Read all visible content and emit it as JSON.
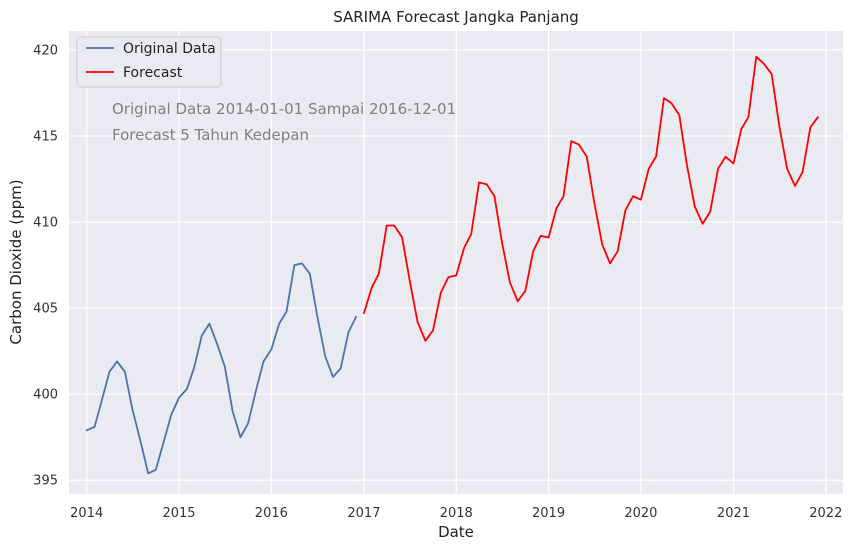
{
  "chart_data": {
    "type": "line",
    "title": "SARIMA Forecast Jangka Panjang",
    "xlabel": "Date",
    "ylabel": "Carbon Dioxide (ppm)",
    "xlim": [
      "2013-10-23",
      "2022-03-10"
    ],
    "ylim": [
      394.2,
      421.1
    ],
    "x_ticks": [
      "2014",
      "2015",
      "2016",
      "2017",
      "2018",
      "2019",
      "2020",
      "2021",
      "2022"
    ],
    "y_ticks": [
      395,
      400,
      405,
      410,
      415,
      420
    ],
    "grid": true,
    "legend": "top-left",
    "annotations": [
      "Original Data 2014-01-01 Sampai 2016-12-01",
      "Forecast 5 Tahun Kedepan"
    ],
    "series": [
      {
        "name": "Original Data",
        "color": "#4c72b0",
        "x": [
          "2014-01",
          "2014-02",
          "2014-03",
          "2014-04",
          "2014-05",
          "2014-06",
          "2014-07",
          "2014-08",
          "2014-09",
          "2014-10",
          "2014-11",
          "2014-12",
          "2015-01",
          "2015-02",
          "2015-03",
          "2015-04",
          "2015-05",
          "2015-06",
          "2015-07",
          "2015-08",
          "2015-09",
          "2015-10",
          "2015-11",
          "2015-12",
          "2016-01",
          "2016-02",
          "2016-03",
          "2016-04",
          "2016-05",
          "2016-06",
          "2016-07",
          "2016-08",
          "2016-09",
          "2016-10",
          "2016-11",
          "2016-12"
        ],
        "y": [
          397.9,
          398.1,
          399.6,
          401.3,
          401.9,
          401.3,
          399.1,
          397.3,
          395.4,
          395.6,
          397.2,
          398.8,
          399.8,
          400.3,
          401.5,
          403.4,
          404.1,
          402.9,
          401.6,
          399.0,
          397.5,
          398.3,
          400.2,
          401.9,
          402.6,
          404.1,
          404.8,
          407.5,
          407.6,
          407.0,
          404.5,
          402.2,
          401.0,
          401.5,
          403.6,
          404.5
        ]
      },
      {
        "name": "Forecast",
        "color": "#ff0000",
        "x": [
          "2017-01",
          "2017-02",
          "2017-03",
          "2017-04",
          "2017-05",
          "2017-06",
          "2017-07",
          "2017-08",
          "2017-09",
          "2017-10",
          "2017-11",
          "2017-12",
          "2018-01",
          "2018-02",
          "2018-03",
          "2018-04",
          "2018-05",
          "2018-06",
          "2018-07",
          "2018-08",
          "2018-09",
          "2018-10",
          "2018-11",
          "2018-12",
          "2019-01",
          "2019-02",
          "2019-03",
          "2019-04",
          "2019-05",
          "2019-06",
          "2019-07",
          "2019-08",
          "2019-09",
          "2019-10",
          "2019-11",
          "2019-12",
          "2020-01",
          "2020-02",
          "2020-03",
          "2020-04",
          "2020-05",
          "2020-06",
          "2020-07",
          "2020-08",
          "2020-09",
          "2020-10",
          "2020-11",
          "2020-12",
          "2021-01",
          "2021-02",
          "2021-03",
          "2021-04",
          "2021-05",
          "2021-06",
          "2021-07",
          "2021-08",
          "2021-09",
          "2021-10",
          "2021-11",
          "2021-12"
        ],
        "y": [
          404.7,
          406.2,
          407.0,
          409.8,
          409.8,
          409.1,
          406.6,
          404.2,
          403.1,
          403.7,
          405.9,
          406.8,
          406.9,
          408.5,
          409.3,
          412.3,
          412.2,
          411.5,
          408.8,
          406.5,
          405.4,
          406.0,
          408.3,
          409.2,
          409.1,
          410.8,
          411.5,
          414.7,
          414.5,
          413.8,
          411.1,
          408.7,
          407.6,
          408.3,
          410.7,
          411.5,
          411.3,
          413.1,
          413.8,
          417.2,
          416.9,
          416.2,
          413.3,
          410.9,
          409.9,
          410.6,
          413.1,
          413.8,
          413.4,
          415.4,
          416.1,
          419.6,
          419.2,
          418.6,
          415.6,
          413.1,
          412.1,
          412.9,
          415.5,
          416.1
        ]
      }
    ]
  }
}
